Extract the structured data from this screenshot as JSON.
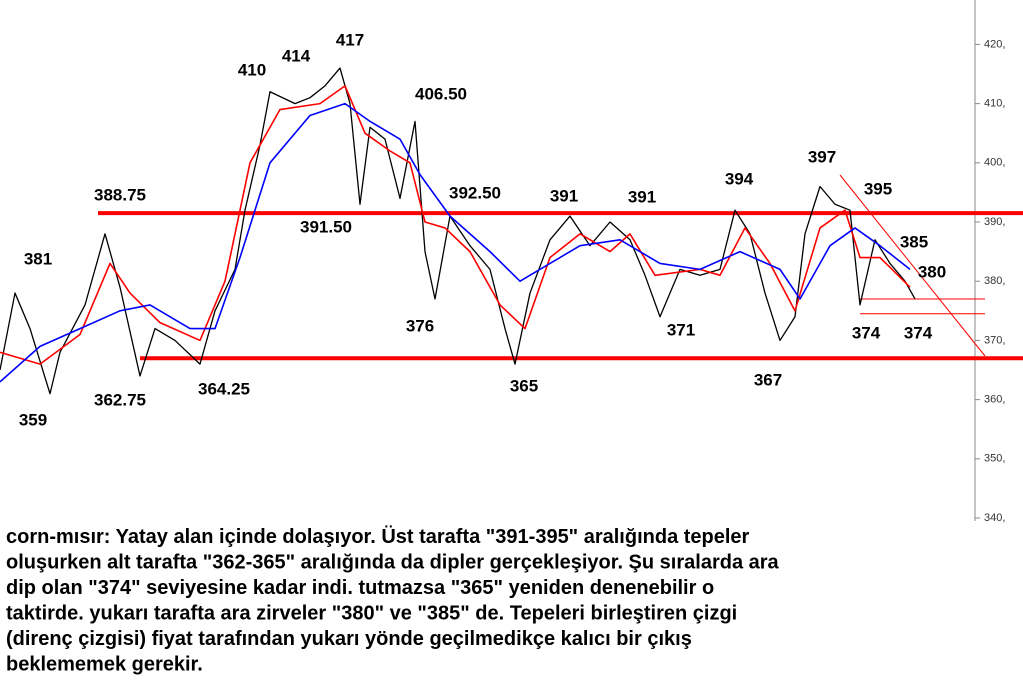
{
  "chart_data": {
    "type": "line",
    "ylim": [
      339.5,
      427.5
    ],
    "xlim": [
      0,
      195
    ],
    "yticks": [
      {
        "value": 340,
        "label": "340,"
      },
      {
        "value": 350,
        "label": "350,"
      },
      {
        "value": 360,
        "label": "360,"
      },
      {
        "value": 370,
        "label": "370,"
      },
      {
        "value": 380,
        "label": "380,"
      },
      {
        "value": 390,
        "label": "390,"
      },
      {
        "value": 400,
        "label": "400,"
      },
      {
        "value": 410,
        "label": "410,"
      },
      {
        "value": 420,
        "label": "420,"
      }
    ],
    "series": [
      {
        "color": "#000000",
        "x": [
          0,
          3,
          6,
          10,
          12,
          17,
          21,
          24,
          28,
          31,
          35,
          40,
          43,
          47,
          49,
          52,
          54,
          59,
          62,
          65,
          68,
          70,
          72,
          74,
          77,
          80,
          83,
          85,
          87,
          90,
          94,
          98,
          101,
          103,
          106,
          110,
          114,
          118,
          122,
          126,
          129,
          132,
          136,
          140,
          144,
          147,
          150,
          153,
          156,
          159,
          161,
          164,
          167,
          170,
          172,
          175,
          178,
          181,
          183
        ],
        "values": [
          365,
          378,
          372,
          361,
          368,
          376,
          388,
          379,
          364,
          372,
          370,
          366,
          375,
          382,
          392,
          403,
          412,
          410,
          411,
          413,
          416,
          410,
          393,
          406,
          404,
          394,
          407,
          385,
          377,
          391,
          386,
          382,
          372,
          366,
          378,
          387,
          391,
          386,
          390,
          387,
          381,
          374,
          382,
          381,
          382,
          392,
          388,
          378,
          370,
          374,
          388,
          396,
          393,
          392,
          376,
          387,
          383,
          380,
          377
        ]
      },
      {
        "color": "#ff0000",
        "x": [
          0,
          8,
          16,
          22,
          26,
          32,
          40,
          45,
          50,
          56,
          64,
          69,
          73,
          78,
          82,
          85,
          89,
          94,
          100,
          105,
          110,
          116,
          122,
          126,
          131,
          140,
          144,
          149,
          154,
          159,
          164,
          169,
          172,
          176,
          182
        ],
        "values": [
          368,
          366,
          371,
          383,
          378,
          373,
          370,
          380,
          400,
          409,
          410,
          413,
          405,
          402,
          400,
          390,
          389,
          385,
          376,
          372,
          384,
          388,
          385,
          388,
          381,
          382,
          381,
          389,
          383,
          375,
          389,
          392,
          384,
          384,
          379
        ]
      },
      {
        "color": "#0000ff",
        "x": [
          0,
          8,
          16,
          24,
          30,
          38,
          43,
          48,
          54,
          62,
          69,
          74,
          80,
          84,
          90,
          98,
          104,
          110,
          116,
          124,
          132,
          140,
          148,
          156,
          160,
          166,
          171,
          176,
          182
        ],
        "values": [
          363,
          369,
          372,
          375,
          376,
          372,
          372,
          384,
          400,
          408,
          410,
          407,
          404,
          398,
          391,
          385,
          380,
          383,
          386,
          387,
          383,
          382,
          385,
          382,
          377,
          386,
          389,
          386,
          382
        ]
      }
    ],
    "levels": [
      391.5,
      367
    ],
    "minor_levels": [
      377,
      374.5
    ],
    "level_color": "#ff0000",
    "annotations": [
      "381",
      "359",
      "362.75",
      "364.25",
      "410",
      "414",
      "417",
      "406.50",
      "391.50",
      "388.75",
      "392.50",
      "376",
      "365",
      "391",
      "391",
      "371",
      "394",
      "367",
      "397",
      "395",
      "385",
      "380",
      "374",
      "374"
    ],
    "caption": [
      "corn-mısır: Yatay alan içinde dolaşıyor. Üst tarafta \"391-395\" aralığında tepeler",
      "oluşurken alt tarafta \"362-365\" aralığında da dipler gerçekleşiyor. Şu sıralarda ara",
      "dip olan \"374\" seviyesine kadar indi. tutmazsa \"365\" yeniden denenebilir o",
      "taktirde. yukarı tarafta ara zirveler \"380\" ve \"385\" de. Tepeleri birleştiren çizgi",
      "(direnç çizgisi) fiyat tarafından yukarı yönde geçilmedikçe kalıcı bir çıkış",
      "beklememek gerekir."
    ]
  }
}
